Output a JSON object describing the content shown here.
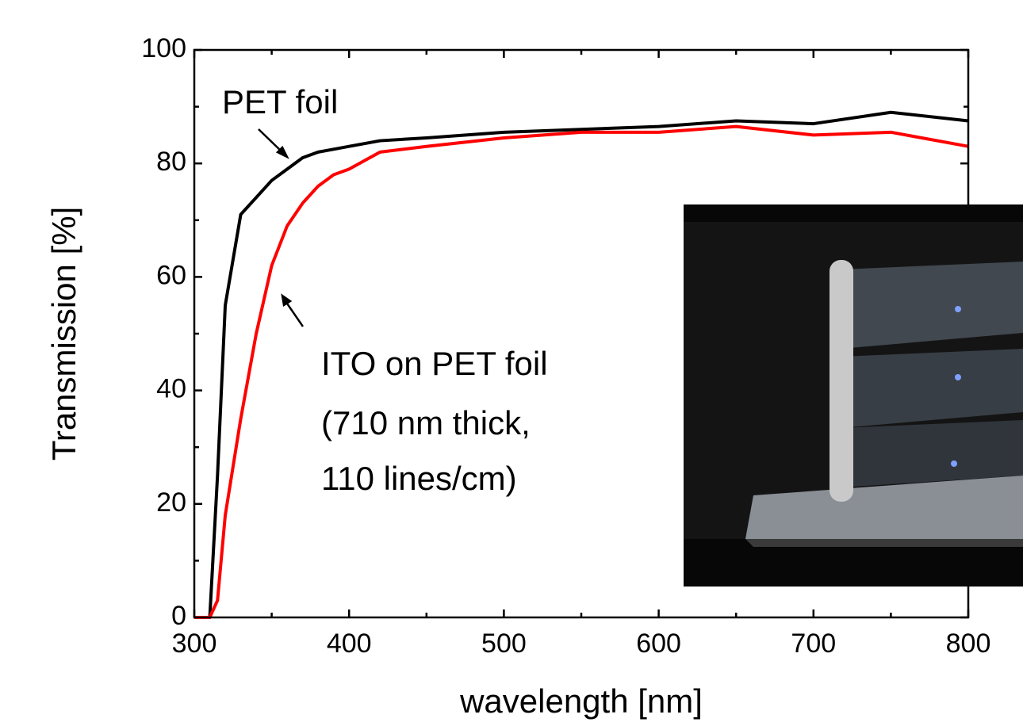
{
  "chart_data": {
    "type": "line",
    "x_label": "wavelength [nm]",
    "y_label": "Transmission [%]",
    "x": [
      300,
      310,
      315,
      320,
      330,
      340,
      350,
      360,
      370,
      380,
      390,
      400,
      420,
      450,
      500,
      550,
      600,
      650,
      700,
      750,
      800
    ],
    "series": [
      {
        "name": "PET foil",
        "color": "#000000",
        "values": [
          0,
          0,
          25,
          55,
          71,
          74,
          77,
          79,
          81,
          82,
          82.5,
          83,
          84,
          84.5,
          85.5,
          86,
          86.5,
          87.5,
          87,
          89,
          87.5
        ]
      },
      {
        "name": "ITO on PET foil",
        "color": "#ff0000",
        "values": [
          0,
          0,
          3,
          18,
          35,
          50,
          62,
          69,
          73,
          76,
          78,
          79,
          82,
          83,
          84.5,
          85.5,
          85.5,
          86.5,
          85,
          85.5,
          83
        ]
      }
    ],
    "annotations": [
      "(710 nm thick,",
      "110 lines/cm)"
    ],
    "xlim": [
      300,
      800
    ],
    "ylim": [
      0,
      100
    ],
    "xticks": [
      300,
      400,
      500,
      600,
      700,
      800
    ],
    "yticks": [
      0,
      20,
      40,
      60,
      80,
      100
    ]
  }
}
